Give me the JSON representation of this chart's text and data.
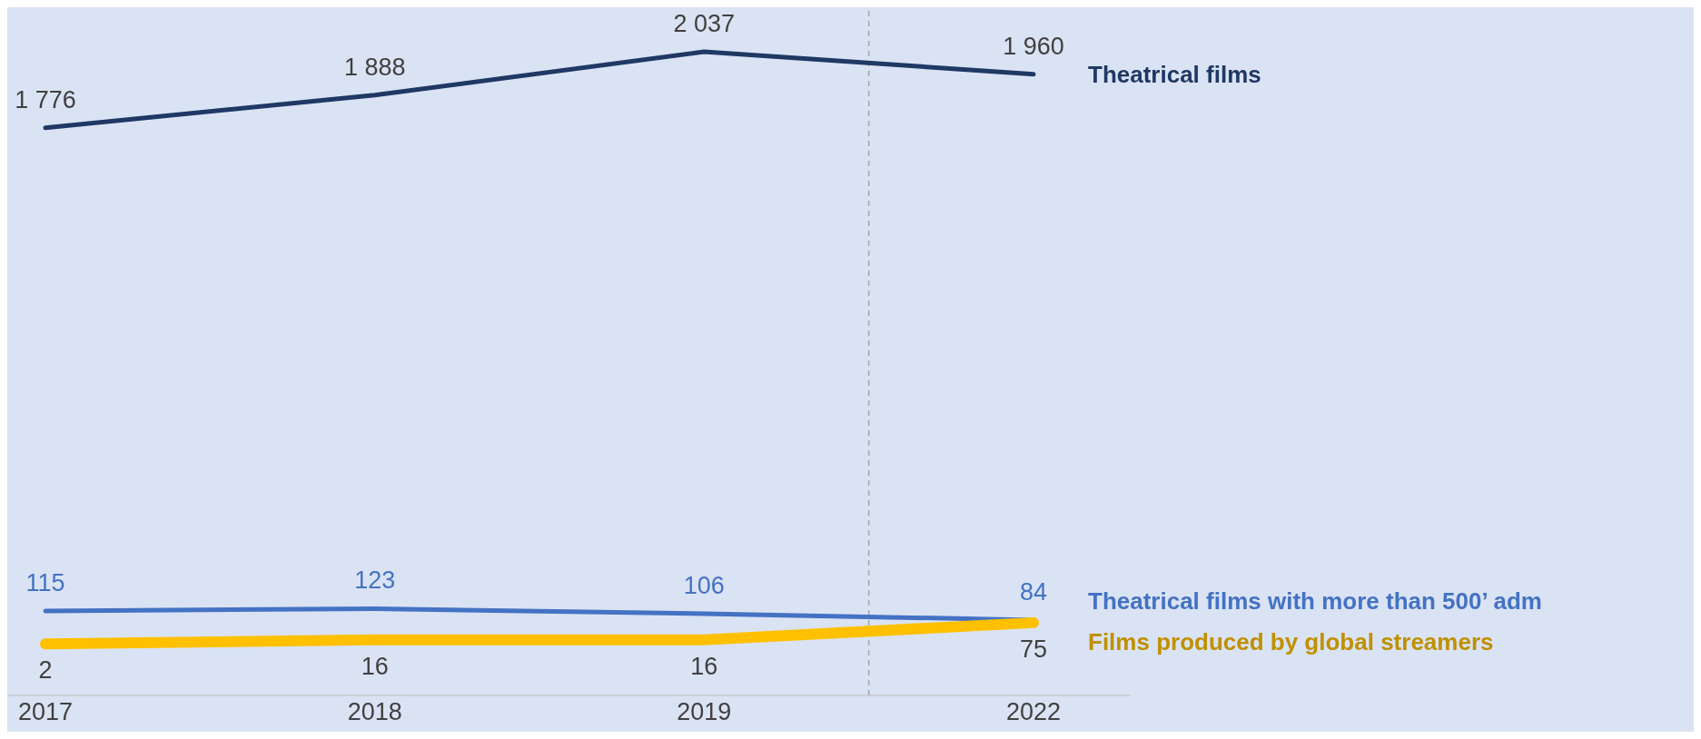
{
  "chart_data": {
    "type": "line",
    "categories": [
      "2017",
      "2018",
      "2019",
      "2022"
    ],
    "series": [
      {
        "name": "Theatrical films",
        "color": "#1f3864",
        "values": [
          1776,
          1888,
          2037,
          1960
        ]
      },
      {
        "name": "Theatrical films with more than 500’ adm",
        "color": "#4472c4",
        "values": [
          115,
          123,
          106,
          84
        ]
      },
      {
        "name": "Films produced by global streamers",
        "color": "#ffc000",
        "values": [
          2,
          16,
          16,
          75
        ]
      }
    ],
    "ylim": [
      -175,
      2190
    ],
    "data_labels": true,
    "grid": false,
    "legend": false,
    "marker": "none",
    "line_style": "solid"
  }
}
